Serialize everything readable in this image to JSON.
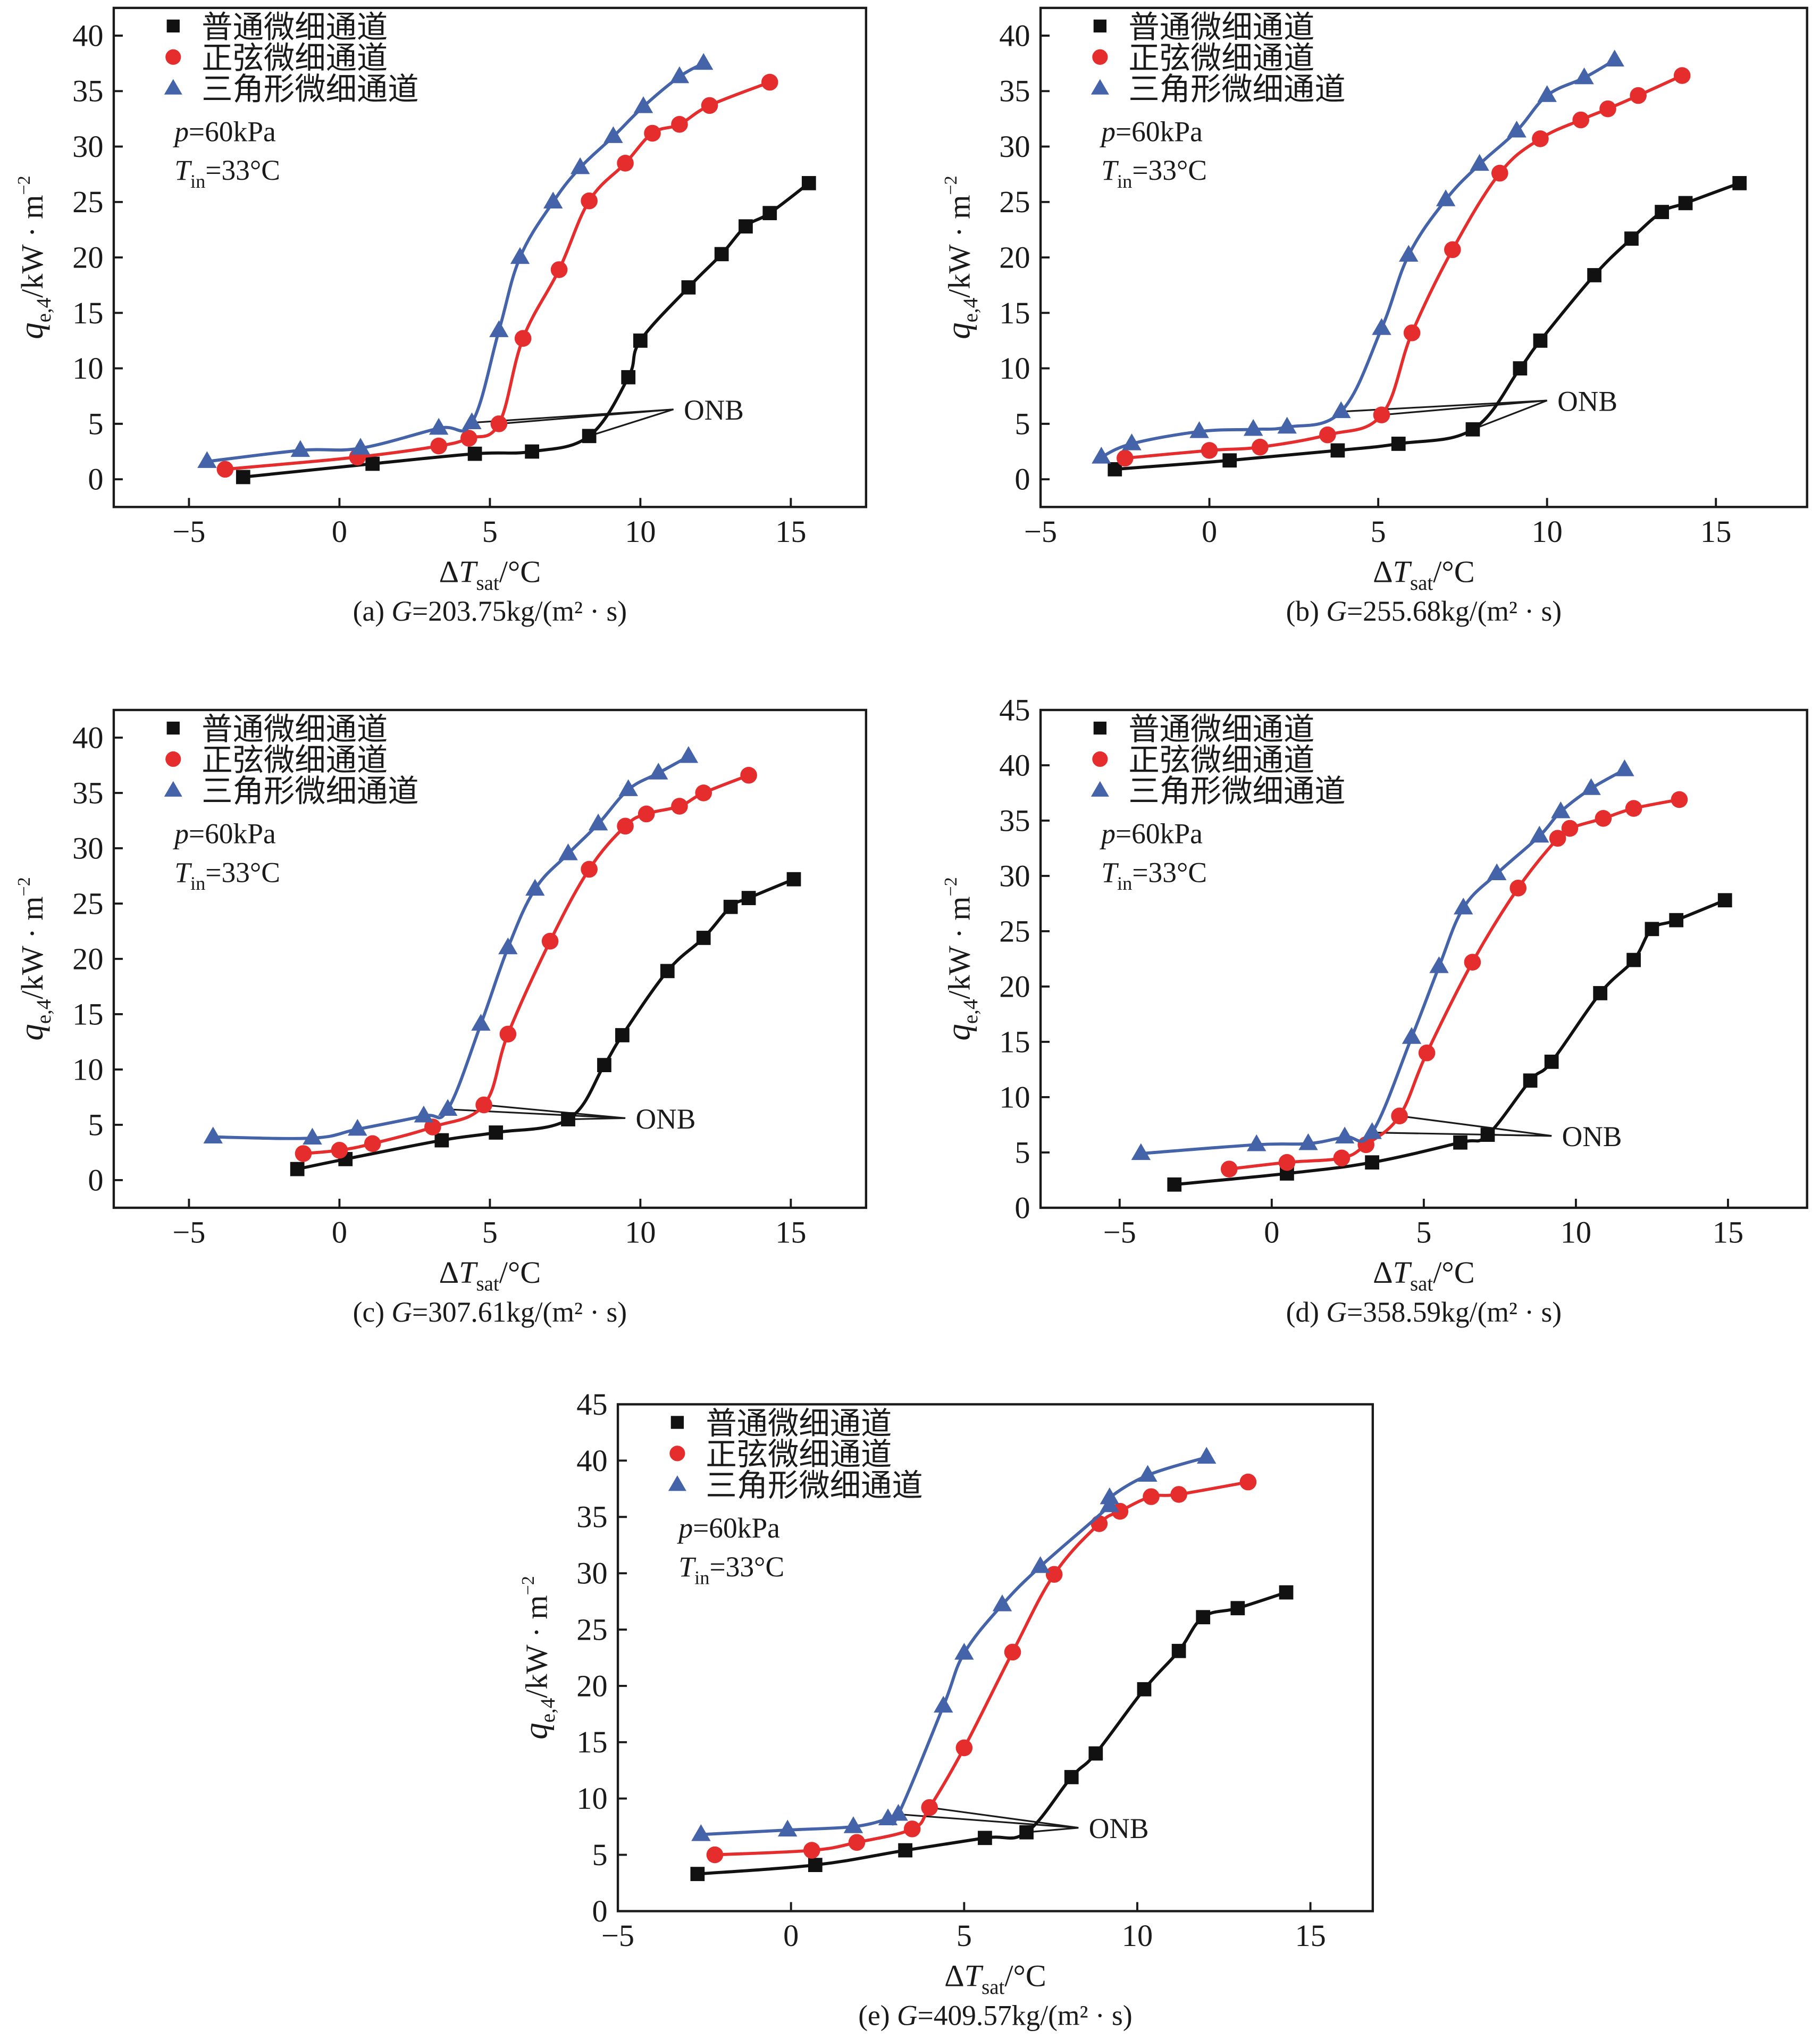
{
  "figure": {
    "legend_labels": [
      "普通微细通道",
      "正弦微细通道",
      "三角形微细通道"
    ],
    "condition_p": {
      "var": "p",
      "text": "=60kPa"
    },
    "condition_T": {
      "var": "T",
      "sub": "in",
      "text": "=33°C"
    },
    "ylabel": {
      "var": "q",
      "sub": "e,4",
      "unit": "/kW · m",
      "sup": "−2"
    },
    "xlabel": {
      "prefix": "Δ",
      "var": "T",
      "sub": "sat",
      "unit": "/°C"
    },
    "annotation": "ONB",
    "colors": {
      "plain": "#111111",
      "sine": "#e52d2d",
      "triangle": "#4563a8"
    }
  },
  "chart_data": [
    {
      "type": "line",
      "panel": "a",
      "title": "(a) G=203.75kg/(m² · s)",
      "caption": {
        "prefix": "(a) ",
        "var": "G",
        "text": "=203.75kg/(m² · s)"
      },
      "condition_T_text": "=33°C",
      "condition_T_compact": true,
      "xlabel": "ΔT_sat/°C",
      "ylabel": "q_e,4/kW·m⁻²",
      "xlim": [
        -7.5,
        17.5
      ],
      "ylim": [
        -2.5,
        42.5
      ],
      "xticks": [
        -5,
        0,
        5,
        10,
        15
      ],
      "yticks": [
        0,
        5,
        10,
        15,
        20,
        25,
        30,
        35,
        40
      ],
      "legend": "top-left",
      "grid": false,
      "series": [
        {
          "name": "普通微细通道",
          "marker": "square",
          "x": [
            -3.2,
            1.1,
            4.5,
            6.4,
            8.3,
            9.6,
            10.0,
            11.6,
            12.7,
            13.5,
            14.3,
            15.6
          ],
          "y": [
            0.2,
            1.4,
            2.3,
            2.5,
            3.9,
            9.2,
            12.5,
            17.3,
            20.3,
            22.8,
            24.0,
            26.7
          ],
          "onb_index": 4
        },
        {
          "name": "正弦微细通道",
          "marker": "circle",
          "x": [
            -3.8,
            0.6,
            3.3,
            4.3,
            5.3,
            6.1,
            7.3,
            8.3,
            9.5,
            10.4,
            11.3,
            12.3,
            14.3
          ],
          "y": [
            0.9,
            2.0,
            3.0,
            3.7,
            5.0,
            12.7,
            18.9,
            25.1,
            28.5,
            31.2,
            32.0,
            33.7,
            35.8
          ],
          "onb_index": 4
        },
        {
          "name": "三角形微细通道",
          "marker": "triangle",
          "x": [
            -4.4,
            -1.3,
            0.7,
            3.3,
            4.4,
            5.3,
            6.0,
            7.1,
            8.0,
            9.1,
            10.1,
            11.3,
            12.1
          ],
          "y": [
            1.6,
            2.6,
            2.8,
            4.6,
            5.1,
            13.4,
            20.0,
            25.0,
            28.1,
            30.9,
            33.6,
            36.3,
            37.5
          ],
          "onb_index": 4
        }
      ],
      "annotation": {
        "text": "ONB",
        "x": 11.1,
        "y": 6.3
      }
    },
    {
      "type": "line",
      "panel": "b",
      "title": "(b) G=255.68kg/(m² · s)",
      "caption": {
        "prefix": "(b) ",
        "var": "G",
        "text": "=255.68kg/(m² · s)"
      },
      "condition_T_text": "=33°C",
      "condition_T_compact": false,
      "xlabel": "ΔT_sat/°C",
      "ylabel": "q_e,4/kW·m⁻²",
      "xlim": [
        -5,
        17.7
      ],
      "ylim": [
        -2.5,
        42.5
      ],
      "xticks": [
        -5,
        0,
        5,
        10,
        15
      ],
      "yticks": [
        0,
        5,
        10,
        15,
        20,
        25,
        30,
        35,
        40
      ],
      "legend": "top-left",
      "grid": false,
      "series": [
        {
          "name": "普通微细通道",
          "marker": "square",
          "x": [
            -2.8,
            0.6,
            3.8,
            5.6,
            7.8,
            9.2,
            9.8,
            11.4,
            12.5,
            13.4,
            14.1,
            15.7
          ],
          "y": [
            0.9,
            1.7,
            2.6,
            3.2,
            4.5,
            10.0,
            12.5,
            18.4,
            21.7,
            24.1,
            24.9,
            26.7
          ],
          "onb_index": 4
        },
        {
          "name": "正弦微细通道",
          "marker": "circle",
          "x": [
            -2.5,
            0.0,
            1.5,
            3.5,
            5.1,
            6.0,
            7.2,
            8.6,
            9.8,
            11.0,
            11.8,
            12.7,
            14.0
          ],
          "y": [
            1.9,
            2.6,
            2.9,
            4.0,
            5.8,
            13.2,
            20.7,
            27.6,
            30.7,
            32.4,
            33.4,
            34.6,
            36.4
          ],
          "onb_index": 4
        },
        {
          "name": "三角形微细通道",
          "marker": "triangle",
          "x": [
            -3.2,
            -2.3,
            -0.3,
            1.3,
            2.3,
            3.9,
            5.1,
            5.9,
            7.0,
            8.0,
            9.1,
            10.0,
            11.1,
            12.0
          ],
          "y": [
            2.0,
            3.2,
            4.3,
            4.5,
            4.7,
            6.1,
            13.6,
            20.2,
            25.2,
            28.4,
            31.4,
            34.6,
            36.2,
            37.8
          ],
          "onb_index": 5
        }
      ],
      "annotation": {
        "text": "ONB",
        "x": 10.0,
        "y": 7.1
      }
    },
    {
      "type": "line",
      "panel": "c",
      "title": "(c) G=307.61kg/(m² · s)",
      "caption": {
        "prefix": "(c) ",
        "var": "G",
        "text": "=307.61kg/(m² · s)"
      },
      "condition_T_text": "=33°C",
      "condition_T_compact": false,
      "xlabel": "ΔT_sat/°C",
      "ylabel": "q_e,4/kW·m⁻²",
      "xlim": [
        -7.5,
        17.5
      ],
      "ylim": [
        -2.5,
        42.5
      ],
      "xticks": [
        -5,
        0,
        5,
        10,
        15
      ],
      "yticks": [
        0,
        5,
        10,
        15,
        20,
        25,
        30,
        35,
        40
      ],
      "legend": "top-left",
      "grid": false,
      "series": [
        {
          "name": "普通微细通道",
          "marker": "square",
          "x": [
            -1.4,
            0.2,
            3.4,
            5.2,
            7.6,
            8.8,
            9.4,
            10.9,
            12.1,
            13.0,
            13.6,
            15.1
          ],
          "y": [
            1.0,
            1.9,
            3.6,
            4.3,
            5.5,
            10.4,
            13.1,
            18.9,
            21.9,
            24.7,
            25.5,
            27.2
          ],
          "onb_index": 4
        },
        {
          "name": "正弦微细通道",
          "marker": "circle",
          "x": [
            -1.2,
            0.0,
            1.1,
            3.1,
            4.8,
            5.6,
            7.0,
            8.3,
            9.5,
            10.2,
            11.3,
            12.1,
            13.6
          ],
          "y": [
            2.4,
            2.7,
            3.3,
            4.8,
            6.8,
            13.2,
            21.6,
            28.1,
            32.0,
            33.1,
            33.8,
            35.0,
            36.6
          ],
          "onb_index": 4
        },
        {
          "name": "三角形微细通道",
          "marker": "triangle",
          "x": [
            -4.2,
            -0.9,
            0.6,
            2.8,
            3.6,
            4.7,
            5.6,
            6.5,
            7.6,
            8.6,
            9.6,
            10.6,
            11.6
          ],
          "y": [
            3.9,
            3.8,
            4.6,
            5.8,
            6.4,
            14.1,
            21.0,
            26.3,
            29.5,
            32.2,
            35.3,
            36.8,
            38.3
          ],
          "onb_index": 4
        }
      ],
      "annotation": {
        "text": "ONB",
        "x": 9.5,
        "y": 5.6
      }
    },
    {
      "type": "line",
      "panel": "d",
      "title": "(d) G=358.59kg/(m² · s)",
      "caption": {
        "prefix": "(d) ",
        "var": "G",
        "text": "=358.59kg/(m² · s)"
      },
      "condition_T_text": "=33°C",
      "condition_T_compact": false,
      "xlabel": "ΔT_sat/°C",
      "ylabel": "q_e,4/kW·m⁻²",
      "xlim": [
        -7.6,
        17.6
      ],
      "ylim": [
        0,
        45
      ],
      "xticks": [
        -5,
        0,
        5,
        10,
        15
      ],
      "yticks": [
        0,
        5,
        10,
        15,
        20,
        25,
        30,
        35,
        40,
        45
      ],
      "legend": "top-left",
      "grid": false,
      "series": [
        {
          "name": "普通微细通道",
          "marker": "square",
          "x": [
            -3.2,
            0.5,
            3.3,
            6.2,
            7.1,
            8.5,
            9.2,
            10.8,
            11.9,
            12.5,
            13.3,
            14.9
          ],
          "y": [
            2.1,
            3.1,
            4.1,
            5.9,
            6.6,
            11.5,
            13.2,
            19.4,
            22.4,
            25.2,
            26.0,
            27.8
          ],
          "onb_index": 4
        },
        {
          "name": "正弦微细通道",
          "marker": "circle",
          "x": [
            -1.4,
            0.5,
            2.3,
            3.1,
            4.2,
            5.1,
            6.6,
            8.1,
            9.4,
            9.8,
            10.9,
            11.9,
            13.4
          ],
          "y": [
            3.5,
            4.1,
            4.5,
            5.7,
            8.3,
            14.0,
            22.2,
            28.9,
            33.4,
            34.3,
            35.2,
            36.1,
            36.9
          ],
          "onb_index": 4
        },
        {
          "name": "三角形微细通道",
          "marker": "triangle",
          "x": [
            -4.3,
            -0.5,
            1.2,
            2.4,
            3.3,
            4.6,
            5.5,
            6.3,
            7.4,
            8.8,
            9.5,
            10.5,
            11.6
          ],
          "y": [
            4.9,
            5.7,
            5.8,
            6.4,
            6.8,
            15.4,
            21.8,
            27.1,
            30.2,
            33.6,
            35.8,
            37.9,
            39.6
          ],
          "onb_index": 4
        }
      ],
      "annotation": {
        "text": "ONB",
        "x": 9.2,
        "y": 6.5
      }
    },
    {
      "type": "line",
      "panel": "e",
      "title": "(e) G=409.57kg/(m² · s)",
      "caption": {
        "prefix": "(e) ",
        "var": "G",
        "text": "=409.57kg/(m² · s)"
      },
      "condition_T_text": "=33°C",
      "condition_T_compact": false,
      "xlabel": "ΔT_sat/°C",
      "ylabel": "q_e,4/kW·m⁻²",
      "xlim": [
        -5,
        16.8
      ],
      "ylim": [
        0,
        45
      ],
      "xticks": [
        -5,
        0,
        5,
        10,
        15
      ],
      "yticks": [
        0,
        5,
        10,
        15,
        20,
        25,
        30,
        35,
        40,
        45
      ],
      "legend": "top-left",
      "grid": false,
      "series": [
        {
          "name": "普通微细通道",
          "marker": "square",
          "x": [
            -2.7,
            0.7,
            3.3,
            5.6,
            6.8,
            8.1,
            8.8,
            10.2,
            11.2,
            11.9,
            12.9,
            14.3
          ],
          "y": [
            3.3,
            4.1,
            5.4,
            6.5,
            7.0,
            11.9,
            14.0,
            19.7,
            23.1,
            26.1,
            26.9,
            28.3
          ],
          "onb_index": 4
        },
        {
          "name": "正弦微细通道",
          "marker": "circle",
          "x": [
            -2.2,
            0.6,
            1.9,
            3.5,
            4.0,
            5.0,
            6.4,
            7.6,
            8.9,
            9.5,
            10.4,
            11.2,
            13.2
          ],
          "y": [
            5.0,
            5.4,
            6.1,
            7.3,
            9.2,
            14.5,
            23.0,
            29.9,
            34.4,
            35.5,
            36.8,
            37.0,
            38.1
          ],
          "onb_index": 4
        },
        {
          "name": "三角形微细通道",
          "marker": "triangle",
          "x": [
            -2.6,
            -0.1,
            1.8,
            2.8,
            3.1,
            4.4,
            5.0,
            6.1,
            7.2,
            9.2,
            9.2,
            10.3,
            12.0
          ],
          "y": [
            6.8,
            7.2,
            7.5,
            8.2,
            8.6,
            18.2,
            22.9,
            27.2,
            30.6,
            36.0,
            36.7,
            38.7,
            40.3
          ],
          "onb_index": 4
        }
      ],
      "annotation": {
        "text": "ONB",
        "x": 8.3,
        "y": 7.4
      }
    }
  ]
}
